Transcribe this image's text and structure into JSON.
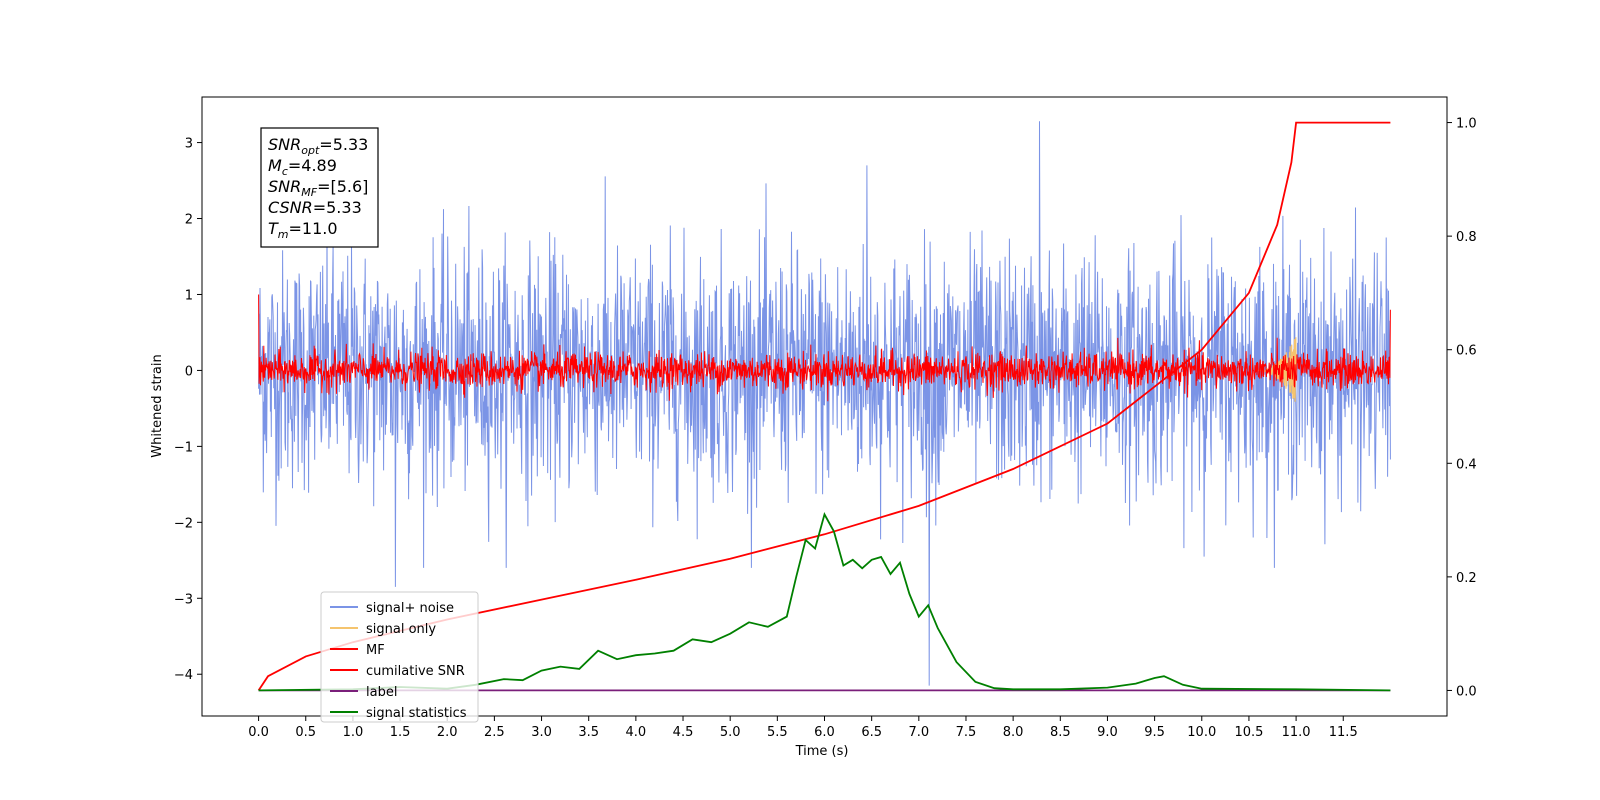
{
  "chart_data": {
    "type": "line",
    "title": "",
    "xlabel": "Time (s)",
    "ylabel_left": "Whitened strain",
    "ylabel_right": "",
    "xlim": [
      -0.6,
      12.6
    ],
    "ylim_left": [
      -4.55,
      3.6
    ],
    "ylim_right": [
      -0.045,
      1.045
    ],
    "x_ticks": [
      "0.0",
      "0.5",
      "1.0",
      "1.5",
      "2.0",
      "2.5",
      "3.0",
      "3.5",
      "4.0",
      "4.5",
      "5.0",
      "5.5",
      "6.0",
      "6.5",
      "7.0",
      "7.5",
      "8.0",
      "8.5",
      "9.0",
      "9.5",
      "10.0",
      "10.5",
      "11.0",
      "11.5"
    ],
    "y_ticks_left": [
      "−4",
      "−3",
      "−2",
      "−1",
      "0",
      "1",
      "2",
      "3"
    ],
    "y_ticks_right": [
      "0.0",
      "0.2",
      "0.4",
      "0.6",
      "0.8",
      "1.0"
    ],
    "grid": false,
    "legend_placement": "lower-left",
    "annotation": {
      "lines": [
        {
          "base": "SNR",
          "sub": "opt",
          "value": "=5.33"
        },
        {
          "base": "M",
          "sub": "c",
          "value": "=4.89"
        },
        {
          "base": "SNR",
          "sub": "MF",
          "value": "=[5.6]"
        },
        {
          "base": "CSNR",
          "sub": "",
          "value": "=5.33"
        },
        {
          "base": "T",
          "sub": "m",
          "value": "=11.0"
        }
      ]
    },
    "series": [
      {
        "name": "signal+ noise",
        "color": "#7b94e6",
        "axis": "left",
        "style": "noise",
        "x_range": [
          0.0,
          12.0
        ],
        "amplitude_sigma": 0.78,
        "spikes": [
          {
            "x": 8.28,
            "y": 3.28
          },
          {
            "x": 7.11,
            "y": -4.15
          },
          {
            "x": 6.45,
            "y": 2.7
          },
          {
            "x": 1.45,
            "y": -2.85
          }
        ]
      },
      {
        "name": "signal only",
        "color": "#f5c46e",
        "axis": "left",
        "style": "chirp",
        "x_range": [
          10.6,
          11.0
        ],
        "peak": 0.45
      },
      {
        "name": "MF",
        "color": "#ff0000",
        "axis": "left",
        "style": "noise",
        "x_range": [
          0.0,
          12.0
        ],
        "amplitude_sigma": 0.12,
        "start_value": 1.0,
        "end_value": 0.8
      },
      {
        "name": "cumilative SNR",
        "color": "#ff0000",
        "axis": "right",
        "style": "line",
        "x": [
          0.0,
          0.1,
          0.5,
          1.0,
          2.0,
          3.0,
          4.0,
          5.0,
          6.0,
          7.0,
          8.0,
          9.0,
          10.0,
          10.5,
          10.8,
          10.95,
          11.0,
          11.5,
          12.0
        ],
        "values": [
          0.0,
          0.025,
          0.06,
          0.085,
          0.125,
          0.16,
          0.195,
          0.232,
          0.275,
          0.325,
          0.39,
          0.47,
          0.6,
          0.7,
          0.82,
          0.93,
          1.0,
          1.0,
          1.0
        ]
      },
      {
        "name": "label",
        "color": "#7a1f7a",
        "axis": "right",
        "style": "line",
        "x": [
          0.0,
          12.0
        ],
        "values": [
          0.0,
          0.0
        ]
      },
      {
        "name": "signal statistics",
        "color": "#008000",
        "axis": "right",
        "style": "line",
        "x": [
          0.0,
          1.0,
          1.5,
          2.0,
          2.3,
          2.6,
          2.8,
          3.0,
          3.2,
          3.4,
          3.6,
          3.8,
          4.0,
          4.2,
          4.4,
          4.6,
          4.8,
          5.0,
          5.2,
          5.4,
          5.6,
          5.7,
          5.8,
          5.9,
          6.0,
          6.1,
          6.2,
          6.3,
          6.4,
          6.5,
          6.6,
          6.7,
          6.8,
          6.9,
          7.0,
          7.1,
          7.2,
          7.4,
          7.6,
          7.8,
          8.0,
          8.5,
          9.0,
          9.3,
          9.5,
          9.6,
          9.8,
          10.0,
          11.0,
          12.0
        ],
        "values": [
          0.0,
          0.002,
          0.006,
          0.003,
          0.01,
          0.02,
          0.018,
          0.035,
          0.042,
          0.038,
          0.07,
          0.055,
          0.062,
          0.065,
          0.07,
          0.09,
          0.085,
          0.1,
          0.12,
          0.112,
          0.13,
          0.2,
          0.265,
          0.25,
          0.31,
          0.28,
          0.22,
          0.23,
          0.215,
          0.23,
          0.235,
          0.205,
          0.225,
          0.17,
          0.13,
          0.15,
          0.11,
          0.05,
          0.015,
          0.004,
          0.002,
          0.002,
          0.005,
          0.012,
          0.022,
          0.025,
          0.01,
          0.003,
          0.002,
          0.0
        ]
      }
    ]
  }
}
